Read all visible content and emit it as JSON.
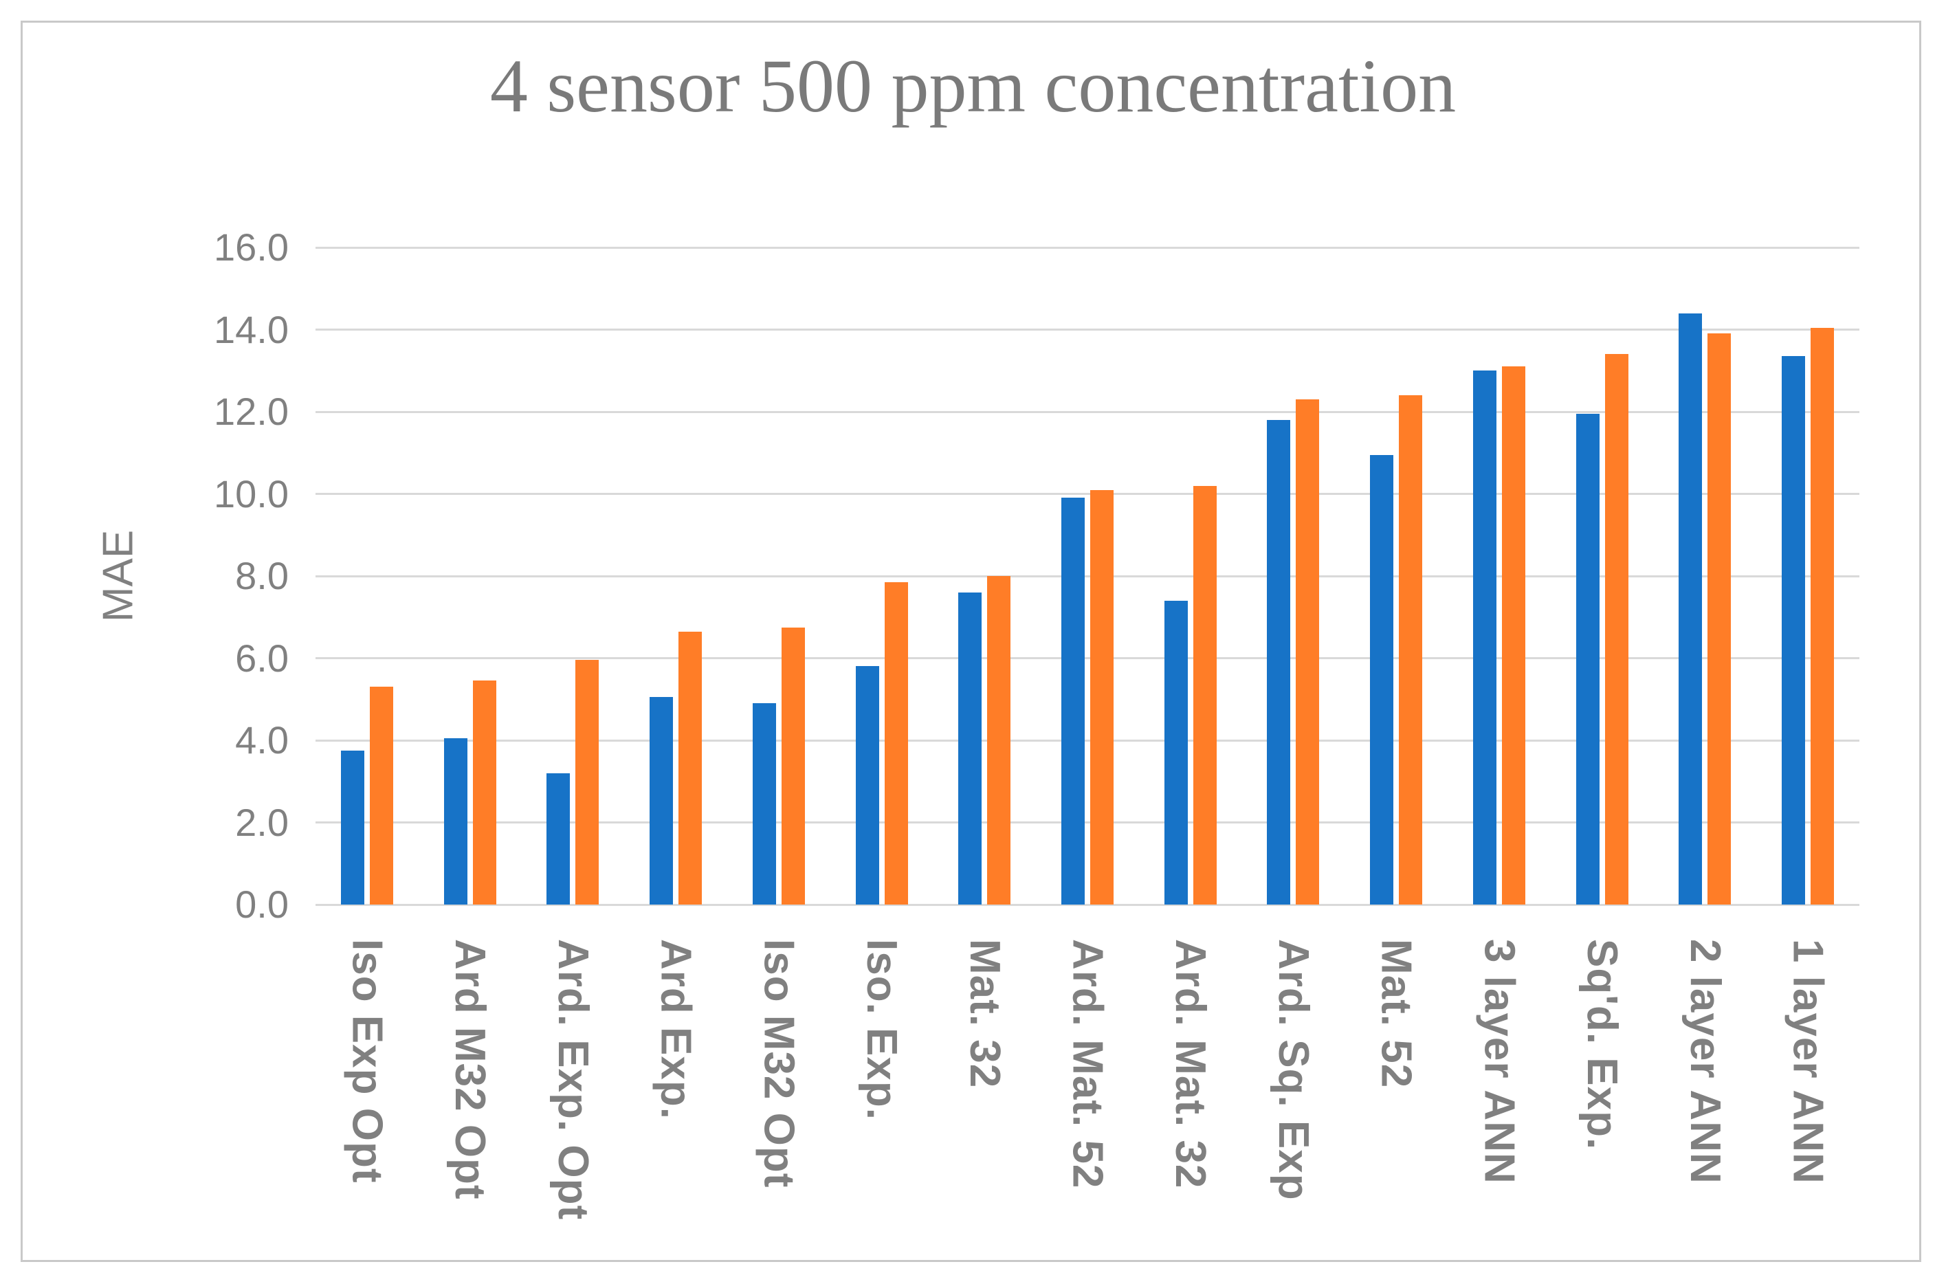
{
  "title": "4 sensor 500 ppm concentration",
  "y_axis": {
    "label": "MAE",
    "ticks": [
      "16.0",
      "14.0",
      "12.0",
      "10.0",
      "8.0",
      "6.0",
      "4.0",
      "2.0",
      "0.0"
    ]
  },
  "colors": {
    "blue_series": "#1773C7",
    "orange_series": "#FF7D27",
    "gridline": "#D9D9D9",
    "axis_text": "#808080",
    "title_text": "#7A7A7A",
    "frame_border": "#C9C9C9",
    "background": "#FFFFFF"
  },
  "chart_data": {
    "type": "bar",
    "title": "4 sensor 500 ppm concentration",
    "xlabel": "",
    "ylabel": "MAE",
    "ylim": [
      0,
      16
    ],
    "ytick_step": 2,
    "grid": true,
    "legend_position": "none",
    "categories": [
      "Iso Exp Opt",
      "Ard M32 Opt",
      "Ard. Exp. Opt",
      "Ard Exp.",
      "Iso M32 Opt",
      "Iso. Exp.",
      "Mat. 32",
      "Ard. Mat. 52",
      "Ard. Mat. 32",
      "Ard. Sq. Exp",
      "Mat. 52",
      "3 layer ANN",
      "Sq'd. Exp.",
      "2 layer ANN",
      "1 layer ANN"
    ],
    "series": [
      {
        "name": "blue",
        "color": "#1773C7",
        "values": [
          3.75,
          4.05,
          3.2,
          5.05,
          4.9,
          5.8,
          7.6,
          9.9,
          7.4,
          11.8,
          10.95,
          13.0,
          11.95,
          14.4,
          13.35
        ]
      },
      {
        "name": "orange",
        "color": "#FF7D27",
        "values": [
          5.3,
          5.45,
          5.95,
          6.65,
          6.75,
          7.85,
          8.0,
          10.1,
          10.2,
          12.3,
          12.4,
          13.1,
          13.4,
          13.9,
          14.05
        ]
      }
    ]
  }
}
